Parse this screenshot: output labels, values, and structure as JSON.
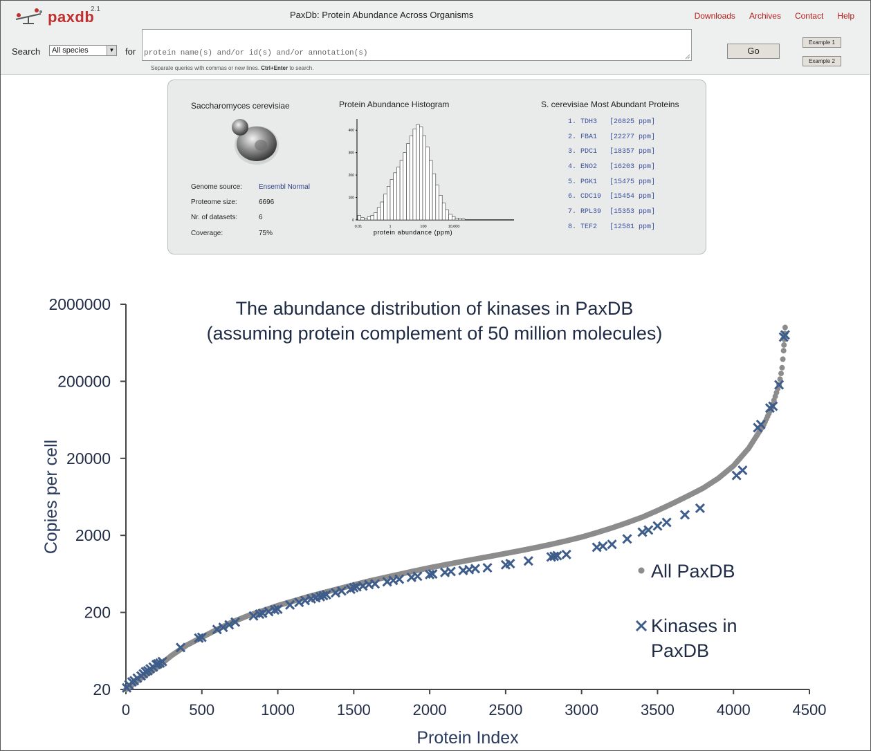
{
  "header": {
    "logo": {
      "text": "paxdb",
      "version": "2.1"
    },
    "title": "PaxDb: Protein Abundance Across Organisms",
    "nav": [
      "Downloads",
      "Archives",
      "Contact",
      "Help"
    ]
  },
  "search": {
    "label": "Search",
    "species_selected": "All species",
    "for_label": "for",
    "placeholder": "protein name(s) and/or id(s) and/or annotation(s)",
    "hint_prefix": "Separate queries with commas or new lines. ",
    "hint_key": "Ctrl+Enter",
    "hint_suffix": " to search.",
    "go_label": "Go",
    "example1": "Example 1",
    "example2": "Example 2"
  },
  "organism": {
    "name": "Saccharomyces cerevisiae",
    "fields": [
      {
        "label": "Genome source:",
        "value": "Ensembl Normal"
      },
      {
        "label": "Proteome size:",
        "value": "6696"
      },
      {
        "label": "Nr. of datasets:",
        "value": "6"
      },
      {
        "label": "Coverage:",
        "value": "75%"
      }
    ]
  },
  "histogram": {
    "title": "Protein Abundance Histogram",
    "xlabel": "protein abundance (ppm)",
    "x_ticks": [
      "0.01",
      "1",
      "100",
      "10,000"
    ],
    "y_ticks": [
      "0",
      "100",
      "200",
      "300",
      "400"
    ],
    "bars": [
      20,
      10,
      8,
      14,
      20,
      32,
      55,
      80,
      115,
      150,
      180,
      210,
      235,
      265,
      300,
      340,
      375,
      405,
      425,
      415,
      375,
      325,
      265,
      205,
      155,
      110,
      75,
      45,
      25,
      15,
      8,
      6,
      4
    ]
  },
  "top_proteins": {
    "title": "S. cerevisiae Most Abundant Proteins",
    "items": [
      {
        "rank": "1.",
        "name": "TDH3",
        "value": "[26825 ppm]"
      },
      {
        "rank": "2.",
        "name": "FBA1",
        "value": "[22277 ppm]"
      },
      {
        "rank": "3.",
        "name": "PDC1",
        "value": "[18357 ppm]"
      },
      {
        "rank": "4.",
        "name": "ENO2",
        "value": "[16203 ppm]"
      },
      {
        "rank": "5.",
        "name": "PGK1",
        "value": "[15475 ppm]"
      },
      {
        "rank": "6.",
        "name": "CDC19",
        "value": "[15454 ppm]"
      },
      {
        "rank": "7.",
        "name": "RPL39",
        "value": "[15353 ppm]"
      },
      {
        "rank": "8.",
        "name": "TEF2",
        "value": "[12581 ppm]"
      }
    ]
  },
  "chart_data": {
    "type": "scatter",
    "title": "The abundance distribution of kinases in PaxDB",
    "subtitle": "(assuming protein complement of 50 million molecules)",
    "xlabel": "Protein Index",
    "ylabel": "Copies per cell",
    "xlim": [
      0,
      4500
    ],
    "ylim": [
      20,
      2000000
    ],
    "yscale": "log",
    "x_ticks": [
      0,
      500,
      1000,
      1500,
      2000,
      2500,
      3000,
      3500,
      4000,
      4500
    ],
    "y_ticks": [
      20,
      200,
      2000,
      20000,
      200000,
      2000000
    ],
    "legend_position": "right",
    "colors": {
      "all": "#8c8c8c",
      "kinases": "#3f5d8a"
    },
    "series": [
      {
        "name": "All PaxDB",
        "marker": "dot",
        "points": [
          [
            0,
            20
          ],
          [
            100,
            28
          ],
          [
            200,
            38
          ],
          [
            300,
            55
          ],
          [
            400,
            75
          ],
          [
            500,
            95
          ],
          [
            600,
            120
          ],
          [
            700,
            150
          ],
          [
            800,
            180
          ],
          [
            900,
            210
          ],
          [
            1000,
            245
          ],
          [
            1100,
            280
          ],
          [
            1200,
            320
          ],
          [
            1300,
            360
          ],
          [
            1400,
            405
          ],
          [
            1500,
            455
          ],
          [
            1600,
            510
          ],
          [
            1700,
            565
          ],
          [
            1800,
            625
          ],
          [
            1900,
            690
          ],
          [
            2000,
            760
          ],
          [
            2100,
            830
          ],
          [
            2200,
            905
          ],
          [
            2300,
            985
          ],
          [
            2400,
            1070
          ],
          [
            2500,
            1165
          ],
          [
            2600,
            1270
          ],
          [
            2700,
            1390
          ],
          [
            2800,
            1530
          ],
          [
            2900,
            1700
          ],
          [
            3000,
            1900
          ],
          [
            3100,
            2170
          ],
          [
            3200,
            2500
          ],
          [
            3300,
            2920
          ],
          [
            3400,
            3450
          ],
          [
            3500,
            4200
          ],
          [
            3600,
            5200
          ],
          [
            3700,
            6500
          ],
          [
            3800,
            8200
          ],
          [
            3900,
            11000
          ],
          [
            4000,
            16000
          ],
          [
            4100,
            27000
          ],
          [
            4200,
            55000
          ],
          [
            4250,
            90000
          ],
          [
            4300,
            180000
          ],
          [
            4320,
            300000
          ],
          [
            4330,
            500000
          ],
          [
            4335,
            700000
          ],
          [
            4340,
            1000000
          ]
        ]
      },
      {
        "name": "Kinases in PaxDB",
        "marker": "x",
        "points": [
          [
            5,
            21
          ],
          [
            20,
            23
          ],
          [
            40,
            25
          ],
          [
            55,
            26
          ],
          [
            75,
            28
          ],
          [
            100,
            30
          ],
          [
            115,
            32
          ],
          [
            130,
            34
          ],
          [
            145,
            35
          ],
          [
            160,
            37
          ],
          [
            180,
            39
          ],
          [
            200,
            42
          ],
          [
            210,
            43
          ],
          [
            225,
            44
          ],
          [
            240,
            46
          ],
          [
            360,
            70
          ],
          [
            480,
            93
          ],
          [
            500,
            95
          ],
          [
            600,
            120
          ],
          [
            640,
            128
          ],
          [
            680,
            138
          ],
          [
            720,
            150
          ],
          [
            840,
            180
          ],
          [
            880,
            190
          ],
          [
            900,
            195
          ],
          [
            940,
            205
          ],
          [
            980,
            215
          ],
          [
            1000,
            220
          ],
          [
            1080,
            250
          ],
          [
            1140,
            270
          ],
          [
            1180,
            285
          ],
          [
            1220,
            300
          ],
          [
            1250,
            310
          ],
          [
            1280,
            320
          ],
          [
            1300,
            330
          ],
          [
            1320,
            340
          ],
          [
            1380,
            360
          ],
          [
            1420,
            380
          ],
          [
            1480,
            400
          ],
          [
            1500,
            420
          ],
          [
            1520,
            430
          ],
          [
            1560,
            440
          ],
          [
            1600,
            460
          ],
          [
            1640,
            470
          ],
          [
            1720,
            500
          ],
          [
            1760,
            520
          ],
          [
            1800,
            540
          ],
          [
            1880,
            570
          ],
          [
            1920,
            590
          ],
          [
            2000,
            620
          ],
          [
            2020,
            630
          ],
          [
            2100,
            660
          ],
          [
            2140,
            680
          ],
          [
            2220,
            700
          ],
          [
            2260,
            720
          ],
          [
            2300,
            740
          ],
          [
            2380,
            760
          ],
          [
            2500,
            830
          ],
          [
            2530,
            860
          ],
          [
            2650,
            930
          ],
          [
            2800,
            1050
          ],
          [
            2820,
            1070
          ],
          [
            2840,
            1090
          ],
          [
            2900,
            1130
          ],
          [
            3100,
            1400
          ],
          [
            3140,
            1450
          ],
          [
            3200,
            1530
          ],
          [
            3300,
            1800
          ],
          [
            3400,
            2200
          ],
          [
            3440,
            2350
          ],
          [
            3500,
            2650
          ],
          [
            3560,
            2950
          ],
          [
            3680,
            3700
          ],
          [
            3780,
            4500
          ],
          [
            4020,
            12000
          ],
          [
            4060,
            14000
          ],
          [
            4160,
            50000
          ],
          [
            4180,
            55000
          ],
          [
            4240,
            90000
          ],
          [
            4260,
            95000
          ],
          [
            4300,
            180000
          ],
          [
            4330,
            750000
          ],
          [
            4340,
            800000
          ]
        ]
      }
    ]
  }
}
